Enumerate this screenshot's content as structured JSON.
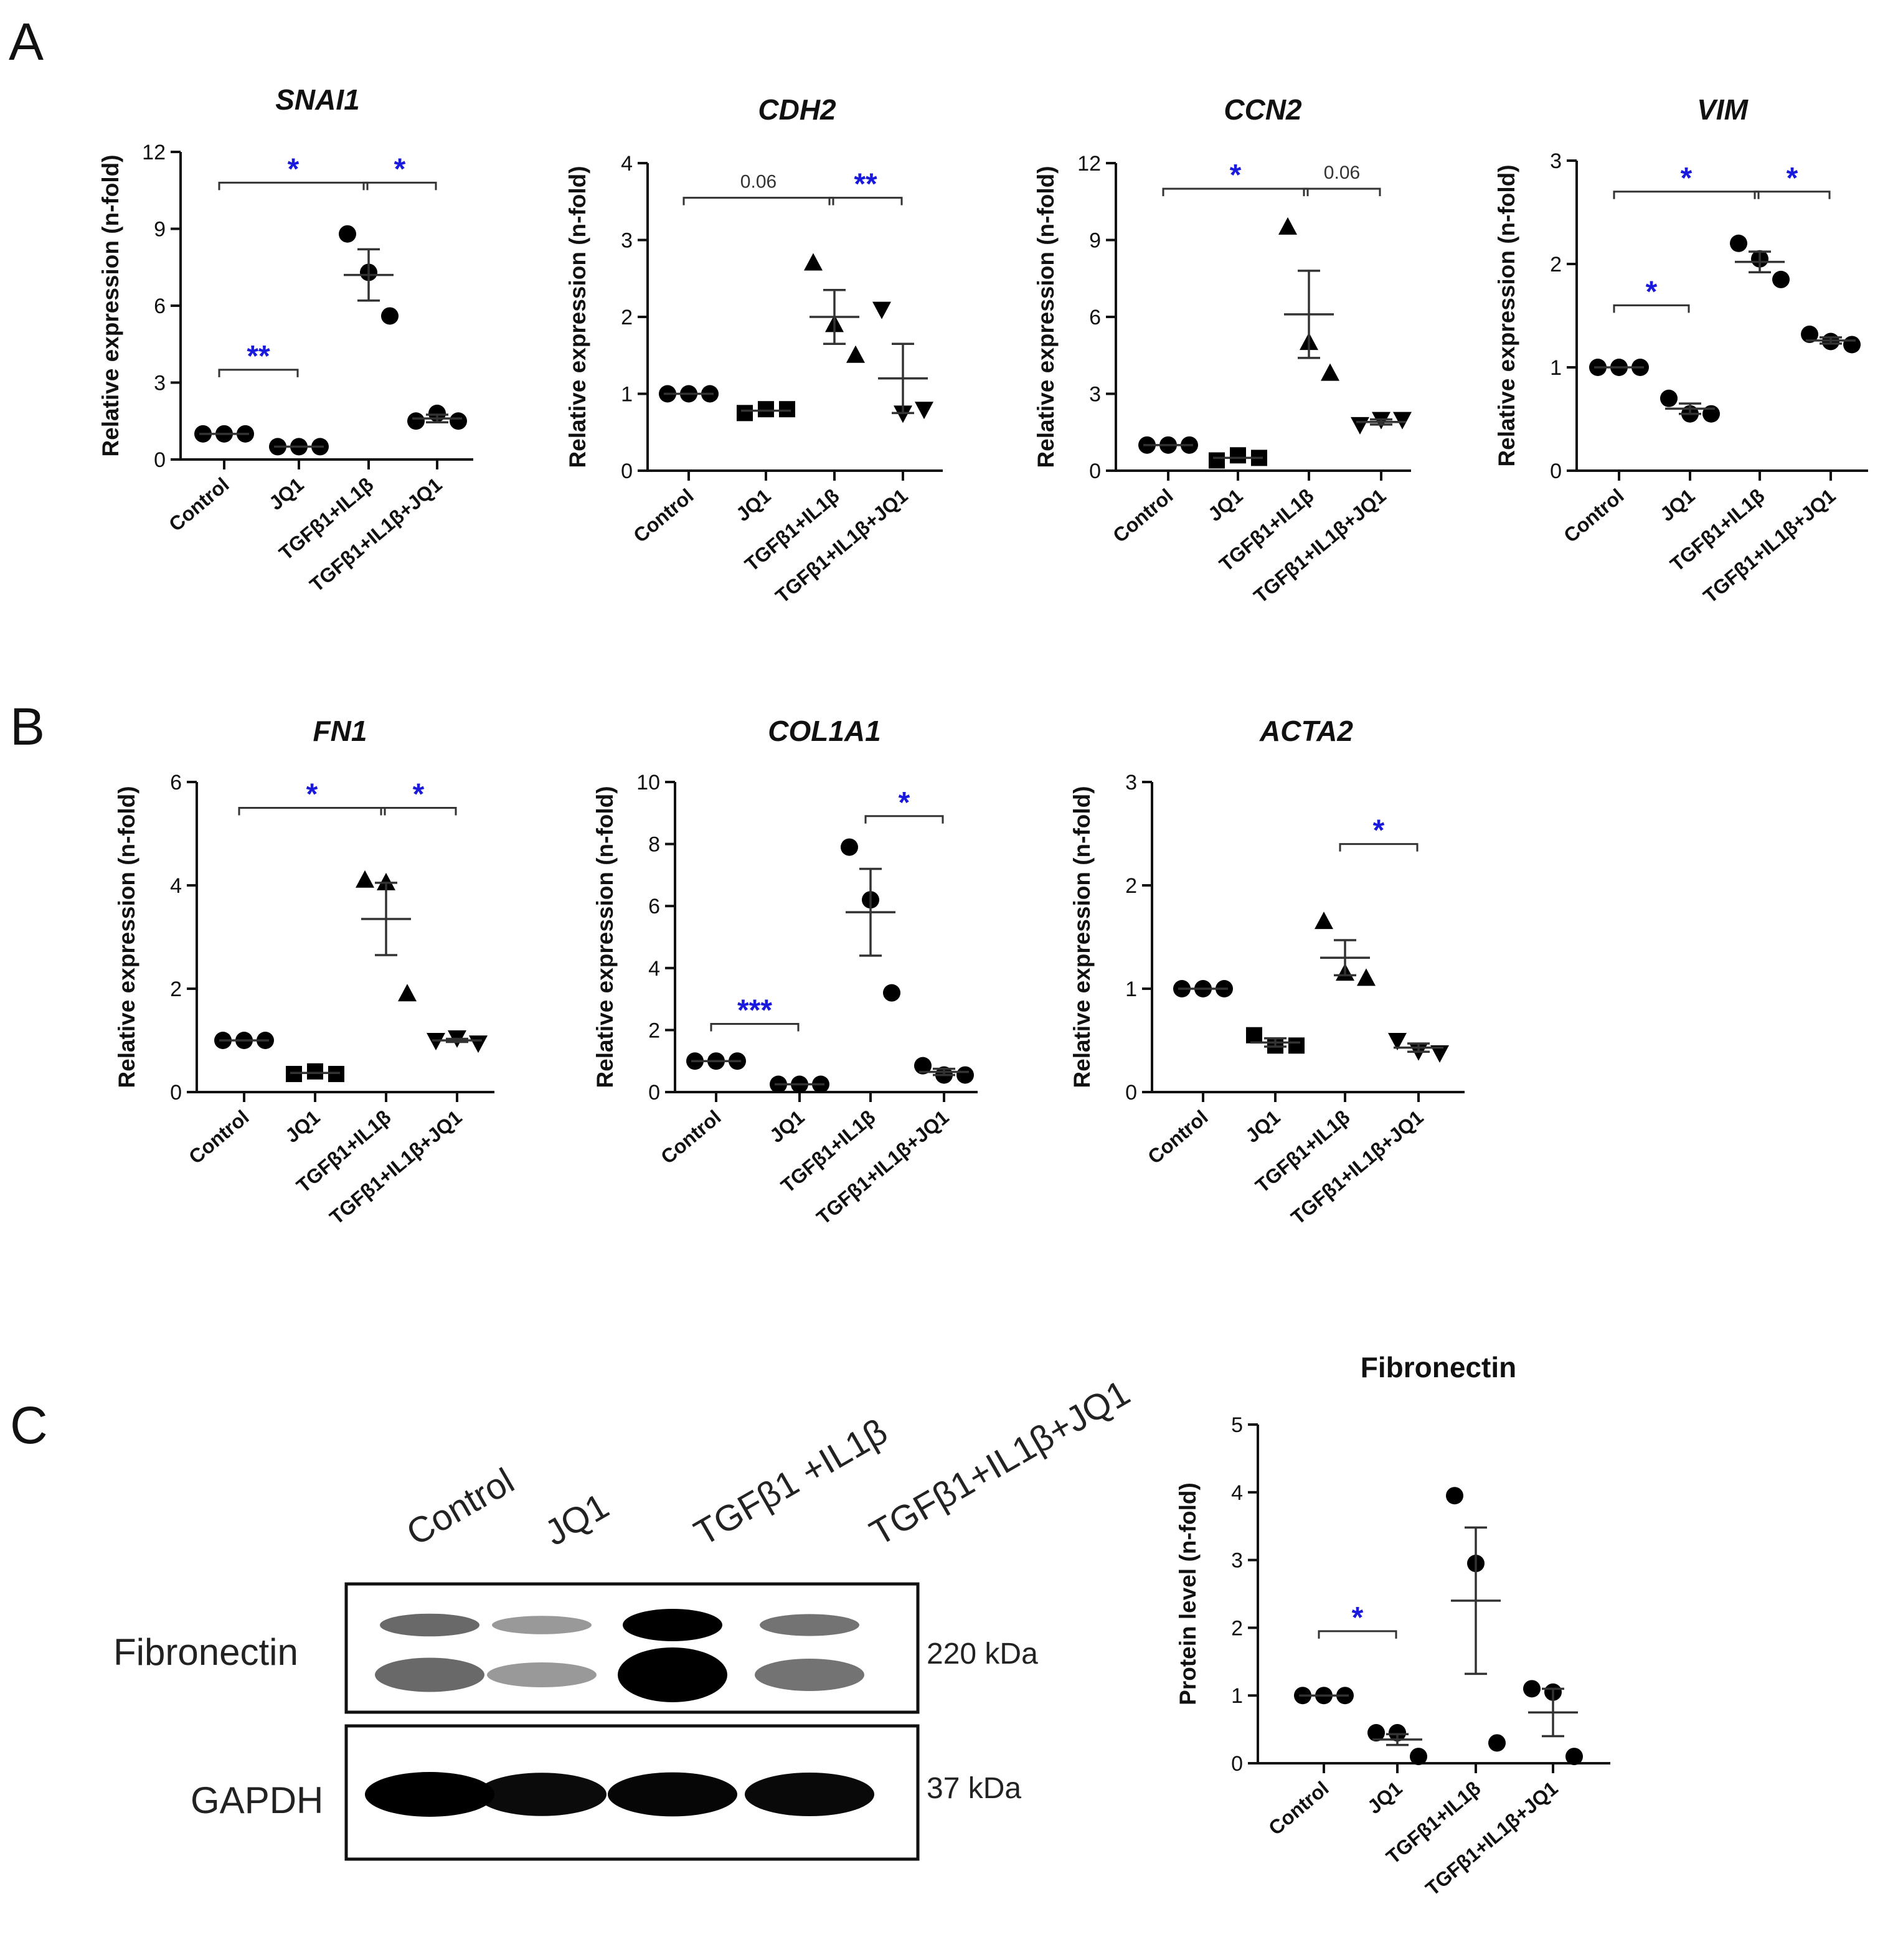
{
  "panels": [
    "A",
    "B",
    "C"
  ],
  "blot": {
    "lanes": [
      "Control",
      "JQ1",
      "TGFβ1 +IL1β",
      "TGFβ1+IL1β+JQ1"
    ],
    "rows": [
      {
        "name": "Fibronectin",
        "kda": "220 kDa",
        "intensity": [
          0.45,
          0.2,
          1.0,
          0.4
        ]
      },
      {
        "name": "GAPDH",
        "kda": "37 kDa",
        "intensity": [
          1.0,
          0.9,
          0.95,
          0.92
        ]
      }
    ]
  },
  "chart_data": [
    {
      "type": "scatter",
      "panel": "A",
      "title": "SNAI1",
      "title_italic": true,
      "ylabel": "Relative expression (n-fold)",
      "categories": [
        "Control",
        "JQ1",
        "TGFβ1+IL1β",
        "TGFβ1+IL1β+JQ1"
      ],
      "ylim": [
        0,
        12
      ],
      "yticks": [
        "0",
        "3",
        "6",
        "9",
        "12"
      ],
      "markers": [
        "circle",
        "circle",
        "circle",
        "circle"
      ],
      "points": [
        [
          1.0,
          1.0,
          1.0
        ],
        [
          0.5,
          0.5,
          0.5
        ],
        [
          8.8,
          7.3,
          5.6
        ],
        [
          1.5,
          1.8,
          1.5
        ]
      ],
      "mean": [
        1.0,
        0.5,
        7.2,
        1.6
      ],
      "sem": [
        0,
        0,
        1.0,
        0.15
      ],
      "sig": [
        {
          "from": 0,
          "to": 2,
          "label": "*",
          "y": 10.8
        },
        {
          "from": 2,
          "to": 3,
          "label": "*",
          "y": 10.8
        },
        {
          "from": 0,
          "to": 1,
          "label": "**",
          "y": 3.5
        }
      ]
    },
    {
      "type": "scatter",
      "panel": "A",
      "title": "CDH2",
      "title_italic": true,
      "ylabel": "Relative expression (n-fold)",
      "categories": [
        "Control",
        "JQ1",
        "TGFβ1+IL1β",
        "TGFβ1+IL1β+JQ1"
      ],
      "ylim": [
        0,
        4
      ],
      "yticks": [
        "0",
        "1",
        "2",
        "3",
        "4"
      ],
      "markers": [
        "circle",
        "square",
        "triangle",
        "triangle-down"
      ],
      "points": [
        [
          1.0,
          1.0,
          1.0
        ],
        [
          0.75,
          0.8,
          0.8
        ],
        [
          2.7,
          1.9,
          1.5
        ],
        [
          2.1,
          0.75,
          0.8
        ]
      ],
      "mean": [
        1.0,
        0.78,
        2.0,
        1.2
      ],
      "sem": [
        0,
        0,
        0.35,
        0.45
      ],
      "sig": [
        {
          "from": 0,
          "to": 2,
          "label": "0.06",
          "y": 3.55
        },
        {
          "from": 2,
          "to": 3,
          "label": "**",
          "y": 3.55
        }
      ]
    },
    {
      "type": "scatter",
      "panel": "A",
      "title": "CCN2",
      "title_italic": true,
      "ylabel": "Relative expression (n-fold)",
      "categories": [
        "Control",
        "JQ1",
        "TGFβ1+IL1β",
        "TGFβ1+IL1β+JQ1"
      ],
      "ylim": [
        0,
        12
      ],
      "yticks": [
        "0",
        "3",
        "6",
        "9",
        "12"
      ],
      "markers": [
        "circle",
        "square",
        "triangle",
        "triangle-down"
      ],
      "points": [
        [
          1.0,
          1.0,
          1.0
        ],
        [
          0.4,
          0.6,
          0.5
        ],
        [
          9.5,
          5.0,
          3.8
        ],
        [
          1.8,
          2.0,
          2.0
        ]
      ],
      "mean": [
        1.0,
        0.5,
        6.1,
        1.9
      ],
      "sem": [
        0,
        0,
        1.7,
        0.1
      ],
      "sig": [
        {
          "from": 0,
          "to": 2,
          "label": "*",
          "y": 11.0
        },
        {
          "from": 2,
          "to": 3,
          "label": "0.06",
          "y": 11.0
        }
      ]
    },
    {
      "type": "scatter",
      "panel": "A",
      "title": "VIM",
      "title_italic": true,
      "ylabel": "Relative expression (n-fold)",
      "categories": [
        "Control",
        "JQ1",
        "TGFβ1+IL1β",
        "TGFβ1+IL1β+JQ1"
      ],
      "ylim": [
        0,
        3
      ],
      "yticks": [
        "0",
        "1",
        "2",
        "3"
      ],
      "markers": [
        "circle",
        "circle",
        "circle",
        "circle"
      ],
      "points": [
        [
          1.0,
          1.0,
          1.0
        ],
        [
          0.7,
          0.55,
          0.55
        ],
        [
          2.2,
          2.05,
          1.85
        ],
        [
          1.32,
          1.25,
          1.22
        ]
      ],
      "mean": [
        1.0,
        0.6,
        2.02,
        1.26
      ],
      "sem": [
        0,
        0.05,
        0.1,
        0.03
      ],
      "sig": [
        {
          "from": 0,
          "to": 2,
          "label": "*",
          "y": 2.7
        },
        {
          "from": 2,
          "to": 3,
          "label": "*",
          "y": 2.7
        },
        {
          "from": 0,
          "to": 1,
          "label": "*",
          "y": 1.6
        }
      ]
    },
    {
      "type": "scatter",
      "panel": "B",
      "title": "FN1",
      "title_italic": true,
      "ylabel": "Relative expression (n-fold)",
      "categories": [
        "Control",
        "JQ1",
        "TGFβ1+IL1β",
        "TGFβ1+IL1β+JQ1"
      ],
      "ylim": [
        0,
        6
      ],
      "yticks": [
        "0",
        "2",
        "4",
        "6"
      ],
      "markers": [
        "circle",
        "square",
        "triangle",
        "triangle-down"
      ],
      "points": [
        [
          1.0,
          1.0,
          1.0
        ],
        [
          0.35,
          0.4,
          0.35
        ],
        [
          4.1,
          4.05,
          1.9
        ],
        [
          1.0,
          1.05,
          0.95
        ]
      ],
      "mean": [
        1.0,
        0.37,
        3.35,
        1.0
      ],
      "sem": [
        0,
        0,
        0.7,
        0.03
      ],
      "sig": [
        {
          "from": 0,
          "to": 2,
          "label": "*",
          "y": 5.5
        },
        {
          "from": 2,
          "to": 3,
          "label": "*",
          "y": 5.5
        }
      ]
    },
    {
      "type": "scatter",
      "panel": "B",
      "title": "COL1A1",
      "title_italic": true,
      "ylabel": "Relative expression (n-fold)",
      "categories": [
        "Control",
        "JQ1",
        "TGFβ1+IL1β",
        "TGFβ1+IL1β+JQ1"
      ],
      "ylim": [
        0,
        10
      ],
      "yticks": [
        "0",
        "2",
        "4",
        "6",
        "8",
        "10"
      ],
      "markers": [
        "circle",
        "circle",
        "circle",
        "circle"
      ],
      "points": [
        [
          1.0,
          1.0,
          1.0
        ],
        [
          0.25,
          0.25,
          0.25
        ],
        [
          7.9,
          6.2,
          3.2
        ],
        [
          0.85,
          0.55,
          0.55
        ]
      ],
      "mean": [
        1.0,
        0.25,
        5.8,
        0.65
      ],
      "sem": [
        0,
        0,
        1.4,
        0.1
      ],
      "sig": [
        {
          "from": 2,
          "to": 3,
          "label": "*",
          "y": 8.9
        },
        {
          "from": 0,
          "to": 1,
          "label": "***",
          "y": 2.2
        }
      ]
    },
    {
      "type": "scatter",
      "panel": "B",
      "title": "ACTA2",
      "title_italic": true,
      "ylabel": "Relative expression (n-fold)",
      "categories": [
        "Control",
        "JQ1",
        "TGFβ1+IL1β",
        "TGFβ1+IL1β+JQ1"
      ],
      "ylim": [
        0,
        3
      ],
      "yticks": [
        "0",
        "1",
        "2",
        "3"
      ],
      "markers": [
        "circle",
        "square",
        "triangle",
        "triangle-down"
      ],
      "points": [
        [
          1.0,
          1.0,
          1.0
        ],
        [
          0.55,
          0.45,
          0.45
        ],
        [
          1.65,
          1.15,
          1.1
        ],
        [
          0.5,
          0.4,
          0.38
        ]
      ],
      "mean": [
        1.0,
        0.48,
        1.3,
        0.43
      ],
      "sem": [
        0,
        0.04,
        0.17,
        0.04
      ],
      "sig": [
        {
          "from": 2,
          "to": 3,
          "label": "*",
          "y": 2.4
        }
      ]
    },
    {
      "type": "scatter",
      "panel": "C",
      "title": "Fibronectin",
      "title_italic": false,
      "ylabel": "Protein level (n-fold)",
      "categories": [
        "Control",
        "JQ1",
        "TGFβ1+IL1β",
        "TGFβ1+IL1β+JQ1"
      ],
      "ylim": [
        0,
        5
      ],
      "yticks": [
        "0",
        "1",
        "2",
        "3",
        "4",
        "5"
      ],
      "markers": [
        "circle",
        "circle",
        "circle",
        "circle"
      ],
      "points": [
        [
          1.0,
          1.0,
          1.0
        ],
        [
          0.45,
          0.45,
          0.1
        ],
        [
          3.95,
          2.95,
          0.3
        ],
        [
          1.1,
          1.05,
          0.1
        ]
      ],
      "mean": [
        1.0,
        0.35,
        2.4,
        0.75
      ],
      "sem": [
        0,
        0.08,
        1.08,
        0.35
      ],
      "sig": [
        {
          "from": 0,
          "to": 1,
          "label": "*",
          "y": 1.95
        }
      ]
    }
  ]
}
